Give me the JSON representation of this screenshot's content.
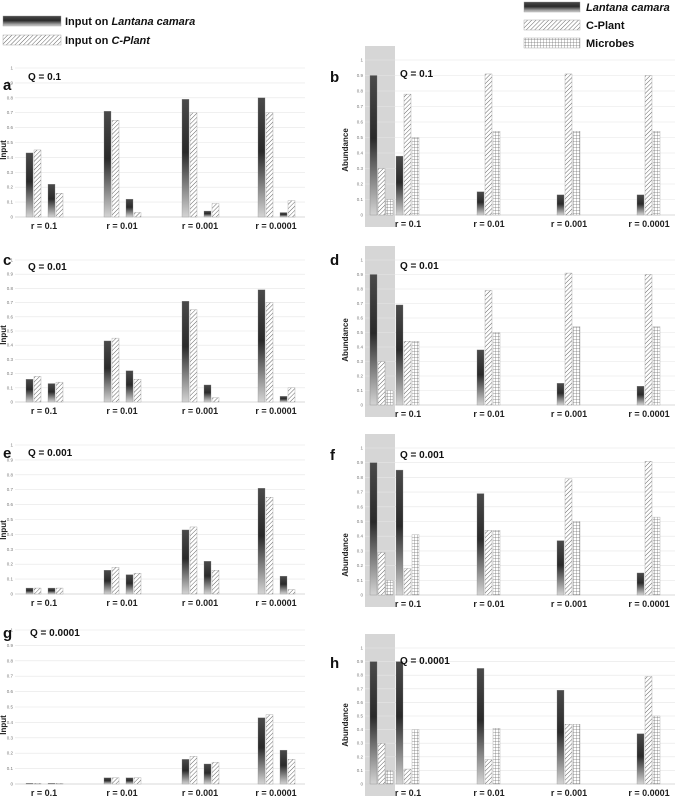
{
  "legend": {
    "left": [
      {
        "label_pre": "Input on ",
        "label_em": "Lantana camara",
        "pattern": "lantana"
      },
      {
        "label_pre": "Input on ",
        "label_em": "C-Plant",
        "pattern": "cplant"
      }
    ],
    "right": [
      {
        "label": "Lantana camara",
        "italic": true,
        "pattern": "lantana"
      },
      {
        "label": "C-Plant",
        "italic": false,
        "pattern": "cplant"
      },
      {
        "label": "Microbes",
        "italic": false,
        "pattern": "microbes"
      }
    ]
  },
  "chart_data": [
    {
      "panel": "a",
      "q_label": "Q = 0.1",
      "type": "bar",
      "ylabel": "Input",
      "ylim": [
        0,
        1
      ],
      "yticks": [
        "0",
        "0.1",
        "0.2",
        "0.3",
        "0.4",
        "0.5",
        "0.6",
        "0.7",
        "0.8",
        "0.9",
        "1"
      ],
      "categories": [
        "r = 0.1",
        "r = 0.01",
        "r = 0.001",
        "r = 0.0001"
      ],
      "groups": [
        [
          {
            "s": "lantana",
            "v": 0.43
          },
          {
            "s": "cplant",
            "v": 0.45
          },
          {
            "s": "lantana",
            "v": 0.22
          },
          {
            "s": "cplant",
            "v": 0.16
          }
        ],
        [
          {
            "s": "lantana",
            "v": 0.71
          },
          {
            "s": "cplant",
            "v": 0.65
          },
          {
            "s": "lantana",
            "v": 0.12
          },
          {
            "s": "cplant",
            "v": 0.03
          }
        ],
        [
          {
            "s": "lantana",
            "v": 0.79
          },
          {
            "s": "cplant",
            "v": 0.7
          },
          {
            "s": "lantana",
            "v": 0.04
          },
          {
            "s": "cplant",
            "v": 0.09
          }
        ],
        [
          {
            "s": "lantana",
            "v": 0.8
          },
          {
            "s": "cplant",
            "v": 0.7
          },
          {
            "s": "lantana",
            "v": 0.03
          },
          {
            "s": "cplant",
            "v": 0.11
          }
        ]
      ]
    },
    {
      "panel": "b",
      "q_label": "Q = 0.1",
      "type": "bar",
      "ylabel": "Abundance",
      "ylim": [
        0,
        1
      ],
      "yticks": [
        "0",
        "0.1",
        "0.2",
        "0.3",
        "0.4",
        "0.5",
        "0.6",
        "0.7",
        "0.8",
        "0.9",
        "1"
      ],
      "initial": [
        {
          "s": "lantana",
          "v": 0.9
        },
        {
          "s": "cplant",
          "v": 0.3
        },
        {
          "s": "microbes",
          "v": 0.1
        }
      ],
      "categories": [
        "r = 0.1",
        "r = 0.01",
        "r = 0.001",
        "r = 0.0001"
      ],
      "groups": [
        [
          {
            "s": "lantana",
            "v": 0.38
          },
          {
            "s": "cplant",
            "v": 0.78
          },
          {
            "s": "microbes",
            "v": 0.5
          }
        ],
        [
          {
            "s": "lantana",
            "v": 0.15
          },
          {
            "s": "cplant",
            "v": 0.91
          },
          {
            "s": "microbes",
            "v": 0.54
          }
        ],
        [
          {
            "s": "lantana",
            "v": 0.13
          },
          {
            "s": "cplant",
            "v": 0.91
          },
          {
            "s": "microbes",
            "v": 0.54
          }
        ],
        [
          {
            "s": "lantana",
            "v": 0.13
          },
          {
            "s": "cplant",
            "v": 0.9
          },
          {
            "s": "microbes",
            "v": 0.54
          }
        ]
      ]
    },
    {
      "panel": "c",
      "q_label": "Q = 0.01",
      "type": "bar",
      "ylabel": "Input",
      "ylim": [
        0,
        1
      ],
      "yticks": [
        "0",
        "0.1",
        "0.2",
        "0.3",
        "0.4",
        "0.5",
        "0.6",
        "0.7",
        "0.8",
        "0.9",
        "1"
      ],
      "categories": [
        "r = 0.1",
        "r = 0.01",
        "r = 0.001",
        "r = 0.0001"
      ],
      "groups": [
        [
          {
            "s": "lantana",
            "v": 0.16
          },
          {
            "s": "cplant",
            "v": 0.18
          },
          {
            "s": "lantana",
            "v": 0.13
          },
          {
            "s": "cplant",
            "v": 0.14
          }
        ],
        [
          {
            "s": "lantana",
            "v": 0.43
          },
          {
            "s": "cplant",
            "v": 0.45
          },
          {
            "s": "lantana",
            "v": 0.22
          },
          {
            "s": "cplant",
            "v": 0.16
          }
        ],
        [
          {
            "s": "lantana",
            "v": 0.71
          },
          {
            "s": "cplant",
            "v": 0.65
          },
          {
            "s": "lantana",
            "v": 0.12
          },
          {
            "s": "cplant",
            "v": 0.03
          }
        ],
        [
          {
            "s": "lantana",
            "v": 0.79
          },
          {
            "s": "cplant",
            "v": 0.7
          },
          {
            "s": "lantana",
            "v": 0.04
          },
          {
            "s": "cplant",
            "v": 0.1
          }
        ]
      ]
    },
    {
      "panel": "d",
      "q_label": "Q = 0.01",
      "type": "bar",
      "ylabel": "Abundance",
      "ylim": [
        0,
        1
      ],
      "yticks": [
        "0",
        "0.1",
        "0.2",
        "0.3",
        "0.4",
        "0.5",
        "0.6",
        "0.7",
        "0.8",
        "0.9",
        "1"
      ],
      "initial": [
        {
          "s": "lantana",
          "v": 0.9
        },
        {
          "s": "cplant",
          "v": 0.3
        },
        {
          "s": "microbes",
          "v": 0.1
        }
      ],
      "categories": [
        "r = 0.1",
        "r = 0.01",
        "r = 0.001",
        "r = 0.0001"
      ],
      "groups": [
        [
          {
            "s": "lantana",
            "v": 0.69
          },
          {
            "s": "cplant",
            "v": 0.44
          },
          {
            "s": "microbes",
            "v": 0.44
          }
        ],
        [
          {
            "s": "lantana",
            "v": 0.38
          },
          {
            "s": "cplant",
            "v": 0.79
          },
          {
            "s": "microbes",
            "v": 0.5
          }
        ],
        [
          {
            "s": "lantana",
            "v": 0.15
          },
          {
            "s": "cplant",
            "v": 0.91
          },
          {
            "s": "microbes",
            "v": 0.54
          }
        ],
        [
          {
            "s": "lantana",
            "v": 0.13
          },
          {
            "s": "cplant",
            "v": 0.9
          },
          {
            "s": "microbes",
            "v": 0.54
          }
        ]
      ]
    },
    {
      "panel": "e",
      "q_label": "Q = 0.001",
      "type": "bar",
      "ylabel": "Input",
      "ylim": [
        0,
        1
      ],
      "yticks": [
        "0",
        "0.1",
        "0.2",
        "0.3",
        "0.4",
        "0.5",
        "0.6",
        "0.7",
        "0.8",
        "0.9",
        "1"
      ],
      "categories": [
        "r = 0.1",
        "r = 0.01",
        "r = 0.001",
        "r = 0.0001"
      ],
      "groups": [
        [
          {
            "s": "lantana",
            "v": 0.04
          },
          {
            "s": "cplant",
            "v": 0.04
          },
          {
            "s": "lantana",
            "v": 0.04
          },
          {
            "s": "cplant",
            "v": 0.04
          }
        ],
        [
          {
            "s": "lantana",
            "v": 0.16
          },
          {
            "s": "cplant",
            "v": 0.18
          },
          {
            "s": "lantana",
            "v": 0.13
          },
          {
            "s": "cplant",
            "v": 0.14
          }
        ],
        [
          {
            "s": "lantana",
            "v": 0.43
          },
          {
            "s": "cplant",
            "v": 0.45
          },
          {
            "s": "lantana",
            "v": 0.22
          },
          {
            "s": "cplant",
            "v": 0.16
          }
        ],
        [
          {
            "s": "lantana",
            "v": 0.71
          },
          {
            "s": "cplant",
            "v": 0.65
          },
          {
            "s": "lantana",
            "v": 0.12
          },
          {
            "s": "cplant",
            "v": 0.03
          }
        ]
      ]
    },
    {
      "panel": "f",
      "q_label": "Q = 0.001",
      "type": "bar",
      "ylabel": "Abundance",
      "ylim": [
        0,
        1
      ],
      "yticks": [
        "0",
        "0.1",
        "0.2",
        "0.3",
        "0.4",
        "0.5",
        "0.6",
        "0.7",
        "0.8",
        "0.9",
        "1"
      ],
      "initial": [
        {
          "s": "lantana",
          "v": 0.9
        },
        {
          "s": "cplant",
          "v": 0.29
        },
        {
          "s": "microbes",
          "v": 0.1
        }
      ],
      "categories": [
        "r = 0.1",
        "r = 0.01",
        "r = 0.001",
        "r = 0.0001"
      ],
      "groups": [
        [
          {
            "s": "lantana",
            "v": 0.85
          },
          {
            "s": "cplant",
            "v": 0.18
          },
          {
            "s": "microbes",
            "v": 0.41
          }
        ],
        [
          {
            "s": "lantana",
            "v": 0.69
          },
          {
            "s": "cplant",
            "v": 0.44
          },
          {
            "s": "microbes",
            "v": 0.44
          }
        ],
        [
          {
            "s": "lantana",
            "v": 0.37
          },
          {
            "s": "cplant",
            "v": 0.79
          },
          {
            "s": "microbes",
            "v": 0.5
          }
        ],
        [
          {
            "s": "lantana",
            "v": 0.15
          },
          {
            "s": "cplant",
            "v": 0.91
          },
          {
            "s": "microbes",
            "v": 0.53
          }
        ]
      ]
    },
    {
      "panel": "g",
      "q_label": "Q = 0.0001",
      "type": "bar",
      "ylabel": "Input",
      "ylim": [
        0,
        1
      ],
      "yticks": [
        "0",
        "0.1",
        "0.2",
        "0.3",
        "0.4",
        "0.5",
        "0.6",
        "0.7",
        "0.8",
        "0.9",
        "1"
      ],
      "categories": [
        "r = 0.1",
        "r = 0.01",
        "r = 0.001",
        "r = 0.0001"
      ],
      "groups": [
        [
          {
            "s": "lantana",
            "v": 0.004
          },
          {
            "s": "cplant",
            "v": 0.004
          },
          {
            "s": "lantana",
            "v": 0.004
          },
          {
            "s": "cplant",
            "v": 0.004
          }
        ],
        [
          {
            "s": "lantana",
            "v": 0.04
          },
          {
            "s": "cplant",
            "v": 0.04
          },
          {
            "s": "lantana",
            "v": 0.04
          },
          {
            "s": "cplant",
            "v": 0.04
          }
        ],
        [
          {
            "s": "lantana",
            "v": 0.16
          },
          {
            "s": "cplant",
            "v": 0.18
          },
          {
            "s": "lantana",
            "v": 0.13
          },
          {
            "s": "cplant",
            "v": 0.14
          }
        ],
        [
          {
            "s": "lantana",
            "v": 0.43
          },
          {
            "s": "cplant",
            "v": 0.45
          },
          {
            "s": "lantana",
            "v": 0.22
          },
          {
            "s": "cplant",
            "v": 0.16
          }
        ]
      ]
    },
    {
      "panel": "h",
      "q_label": "Q = 0.0001",
      "type": "bar",
      "ylabel": "Abundance",
      "ylim": [
        0,
        1
      ],
      "yticks": [
        "0",
        "0.1",
        "0.2",
        "0.3",
        "0.4",
        "0.5",
        "0.6",
        "0.7",
        "0.8",
        "0.9",
        "1"
      ],
      "initial": [
        {
          "s": "lantana",
          "v": 0.9
        },
        {
          "s": "cplant",
          "v": 0.3
        },
        {
          "s": "microbes",
          "v": 0.1
        }
      ],
      "categories": [
        "r = 0.1",
        "r = 0.01",
        "r = 0.001",
        "r = 0.0001"
      ],
      "groups": [
        [
          {
            "s": "lantana",
            "v": 0.9
          },
          {
            "s": "cplant",
            "v": 0.11
          },
          {
            "s": "microbes",
            "v": 0.4
          }
        ],
        [
          {
            "s": "lantana",
            "v": 0.85
          },
          {
            "s": "cplant",
            "v": 0.18
          },
          {
            "s": "microbes",
            "v": 0.41
          }
        ],
        [
          {
            "s": "lantana",
            "v": 0.69
          },
          {
            "s": "cplant",
            "v": 0.44
          },
          {
            "s": "microbes",
            "v": 0.44
          }
        ],
        [
          {
            "s": "lantana",
            "v": 0.37
          },
          {
            "s": "cplant",
            "v": 0.79
          },
          {
            "s": "microbes",
            "v": 0.5
          }
        ]
      ]
    }
  ]
}
